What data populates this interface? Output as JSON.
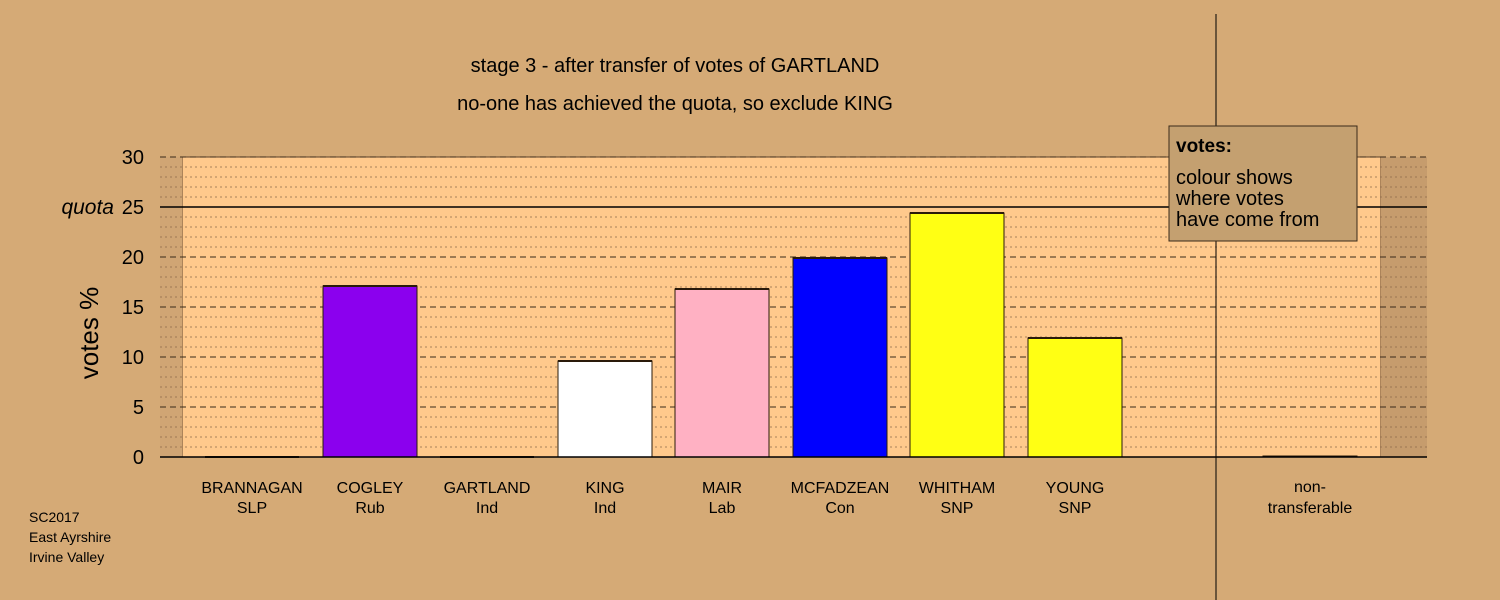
{
  "source": {
    "lines": [
      "SC2017",
      "East Ayrshire",
      "Irvine Valley"
    ]
  },
  "chart_data": {
    "type": "bar",
    "title": "stage 3 - after transfer of votes of GARTLAND",
    "subtitle": "no-one has achieved the quota, so exclude KING",
    "ylabel": "votes %",
    "ylim": [
      0,
      30
    ],
    "yticks": [
      0,
      5,
      10,
      15,
      20,
      25,
      30
    ],
    "ytick_labels": [
      "0",
      "5",
      "10",
      "15",
      "20",
      "25",
      "30"
    ],
    "quota": {
      "label": "quota",
      "value": 25
    },
    "grid": true,
    "candidates": [
      {
        "name": "BRANNAGAN",
        "party": "SLP",
        "value": 0,
        "color": "#d5aa76"
      },
      {
        "name": "COGLEY",
        "party": "Rub",
        "value": 17.1,
        "color": "#8b00ee"
      },
      {
        "name": "GARTLAND",
        "party": "Ind",
        "value": 0,
        "color": "#d5aa76"
      },
      {
        "name": "KING",
        "party": "Ind",
        "value": 9.6,
        "color": "#ffffff"
      },
      {
        "name": "MAIR",
        "party": "Lab",
        "value": 16.8,
        "color": "#ffb1c3"
      },
      {
        "name": "MCFADZEAN",
        "party": "Con",
        "value": 19.9,
        "color": "#0000ff"
      },
      {
        "name": "WHITHAM",
        "party": "SNP",
        "value": 24.4,
        "color": "#ffff14"
      },
      {
        "name": "YOUNG",
        "party": "SNP",
        "value": 11.9,
        "color": "#ffff14"
      }
    ],
    "nontransferable": {
      "label_line1": "non-",
      "label_line2": "transferable",
      "value": 0.1,
      "color": "#d5aa76"
    },
    "legend": {
      "title": "votes:",
      "lines": [
        "colour shows",
        "where votes",
        "have come from"
      ],
      "position": "top-right"
    }
  }
}
